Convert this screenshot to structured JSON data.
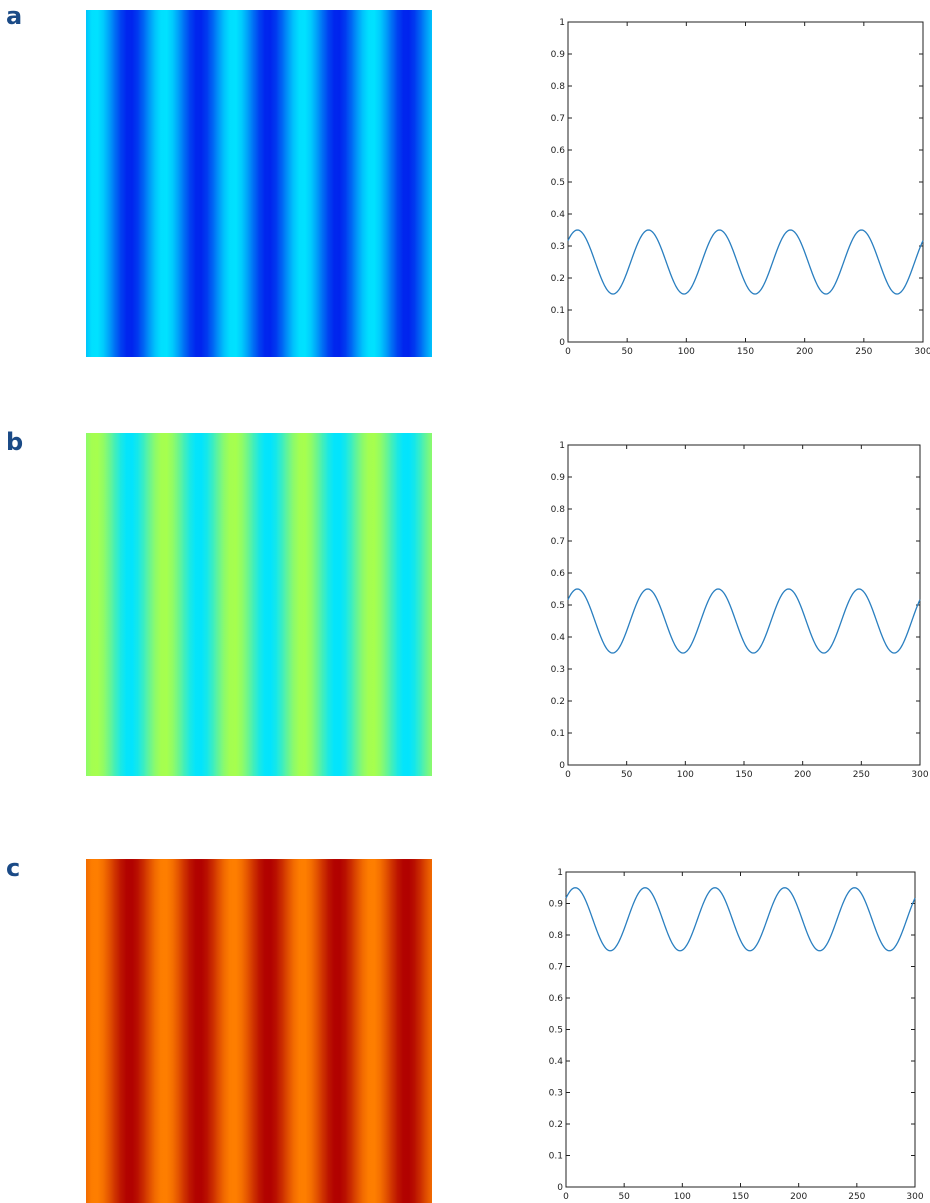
{
  "panels": [
    {
      "letter": "a",
      "heatmap": {
        "stripe_colors": [
          "#00e4ff",
          "#0022ee"
        ]
      },
      "chart_data": {
        "type": "line",
        "x_range": [
          0,
          300
        ],
        "y_range": [
          0,
          1
        ],
        "x_ticks": [
          "0",
          "50",
          "100",
          "150",
          "200",
          "250",
          "300"
        ],
        "y_ticks": [
          "0",
          "0.1",
          "0.2",
          "0.3",
          "0.4",
          "0.5",
          "0.6",
          "0.7",
          "0.8",
          "0.9",
          "1"
        ],
        "series": [
          {
            "mean": 0.25,
            "amplitude": 0.1,
            "period": 60,
            "phase_peak_x": 8,
            "color": "#2a7fc0"
          }
        ]
      }
    },
    {
      "letter": "b",
      "heatmap": {
        "stripe_colors": [
          "#a8ff4c",
          "#00e4ff"
        ]
      },
      "chart_data": {
        "type": "line",
        "x_range": [
          0,
          300
        ],
        "y_range": [
          0,
          1
        ],
        "x_ticks": [
          "0",
          "50",
          "100",
          "150",
          "200",
          "250",
          "300"
        ],
        "y_ticks": [
          "0",
          "0.1",
          "0.2",
          "0.3",
          "0.4",
          "0.5",
          "0.6",
          "0.7",
          "0.8",
          "0.9",
          "1"
        ],
        "series": [
          {
            "mean": 0.45,
            "amplitude": 0.1,
            "period": 60,
            "phase_peak_x": 8,
            "color": "#2a7fc0"
          }
        ]
      }
    },
    {
      "letter": "c",
      "heatmap": {
        "stripe_colors": [
          "#ff8000",
          "#b00000"
        ]
      },
      "chart_data": {
        "type": "line",
        "x_range": [
          0,
          300
        ],
        "y_range": [
          0,
          1
        ],
        "x_ticks": [
          "0",
          "50",
          "100",
          "150",
          "200",
          "250",
          "300"
        ],
        "y_ticks": [
          "0",
          "0.1",
          "0.2",
          "0.3",
          "0.4",
          "0.5",
          "0.6",
          "0.7",
          "0.8",
          "0.9",
          "1"
        ],
        "series": [
          {
            "mean": 0.85,
            "amplitude": 0.1,
            "period": 60,
            "phase_peak_x": 8,
            "color": "#2a7fc0"
          }
        ]
      }
    }
  ]
}
